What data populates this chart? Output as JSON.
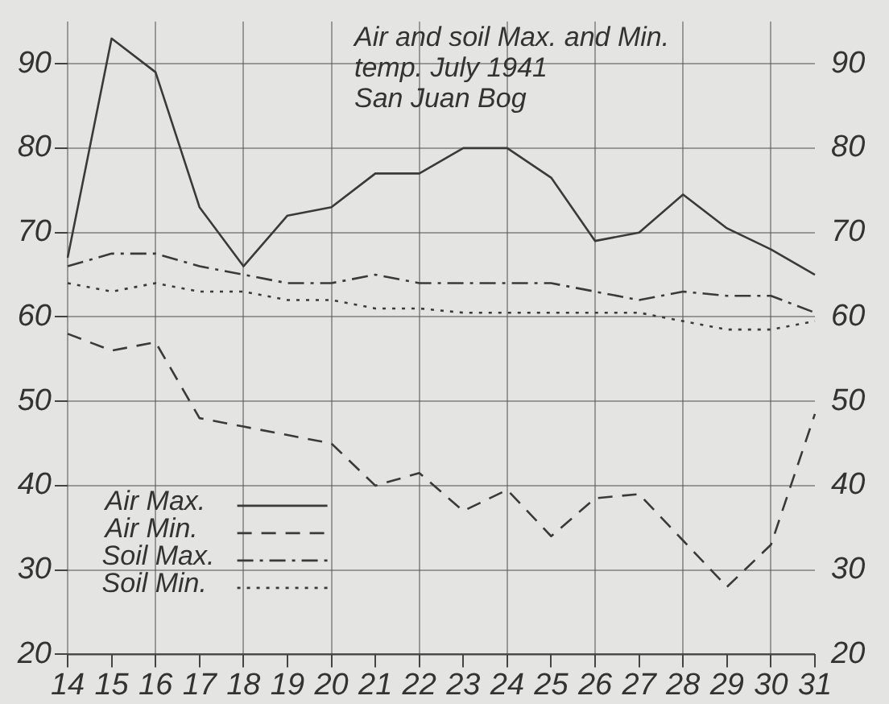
{
  "chart_data": {
    "type": "line",
    "title": "Air and soil Max. and Min.\ntemp. July 1941\nSan Juan Bog",
    "categories": [
      "14",
      "15",
      "16",
      "17",
      "18",
      "19",
      "20",
      "21",
      "22",
      "23",
      "24",
      "25",
      "26",
      "27",
      "28",
      "29",
      "30",
      "31"
    ],
    "series": [
      {
        "name": "Air Max.",
        "color": "#3a3a3a",
        "line_style": "solid",
        "values": [
          67,
          93,
          89,
          73,
          66,
          72,
          73,
          77,
          77,
          80,
          80,
          76.5,
          69,
          70,
          74.5,
          70.5,
          68,
          65
        ]
      },
      {
        "name": "Air Min.",
        "color": "#3a3a3a",
        "line_style": "dashed",
        "values": [
          58,
          56,
          57,
          48,
          47,
          46,
          45,
          40,
          41.5,
          37,
          39.5,
          34,
          38.5,
          39,
          33.5,
          28,
          33,
          48.5
        ]
      },
      {
        "name": "Soil Max.",
        "color": "#3a3a3a",
        "line_style": "dashdot",
        "values": [
          66,
          67.5,
          67.5,
          66,
          65,
          64,
          64,
          65,
          64,
          64,
          64,
          64,
          63,
          62,
          63,
          62.5,
          62.5,
          60.5
        ]
      },
      {
        "name": "Soil Min.",
        "color": "#3a3a3a",
        "line_style": "dotted",
        "values": [
          64,
          63,
          64,
          63,
          63,
          62,
          62,
          61,
          61,
          60.5,
          60.5,
          60.5,
          60.5,
          60.5,
          59.5,
          58.5,
          58.5,
          59.5
        ]
      }
    ],
    "ylim": [
      20,
      95
    ],
    "yticks": [
      20,
      30,
      40,
      50,
      60,
      70,
      80,
      90
    ],
    "y2lim": [
      20,
      95
    ],
    "y2ticks": [
      20,
      30,
      40,
      50,
      60,
      70,
      80,
      90
    ],
    "grid": true,
    "legend": "bottom left",
    "marker": "none"
  }
}
